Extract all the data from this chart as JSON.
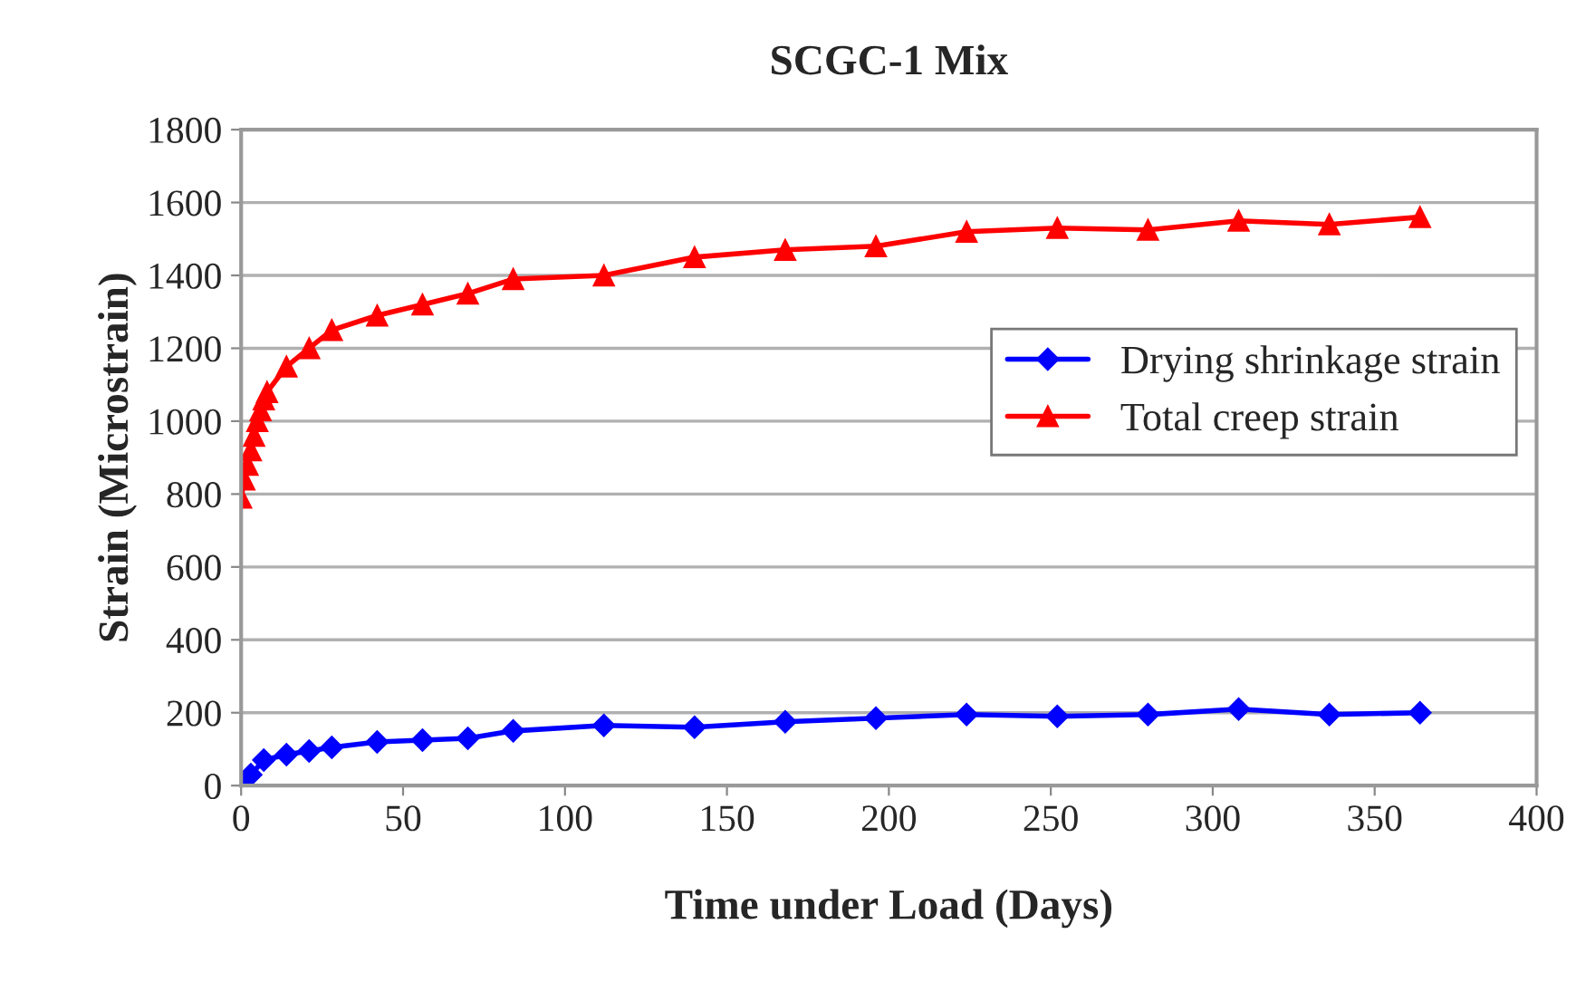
{
  "chart_data": {
    "type": "line",
    "title": "SCGC-1 Mix",
    "xlabel": "Time under Load (Days)",
    "ylabel": "Strain (Microstrain)",
    "series": [
      {
        "name": "Drying shrinkage strain",
        "color": "#0000ff",
        "marker": "diamond",
        "x": [
          0,
          3,
          7,
          14,
          21,
          28,
          42,
          56,
          70,
          84,
          112,
          140,
          168,
          196,
          224,
          252,
          280,
          308,
          336,
          364
        ],
        "values": [
          0,
          30,
          70,
          85,
          95,
          105,
          120,
          125,
          130,
          150,
          165,
          160,
          175,
          185,
          195,
          190,
          195,
          210,
          195,
          200
        ]
      },
      {
        "name": "Total creep strain",
        "color": "#ff0000",
        "marker": "triangle",
        "x": [
          0,
          1,
          2,
          3,
          4,
          5,
          6,
          7,
          8,
          14,
          21,
          28,
          42,
          56,
          70,
          84,
          112,
          140,
          168,
          196,
          224,
          252,
          280,
          308,
          336,
          364
        ],
        "values": [
          790,
          840,
          880,
          920,
          960,
          1000,
          1030,
          1060,
          1080,
          1150,
          1200,
          1250,
          1290,
          1320,
          1350,
          1390,
          1400,
          1450,
          1470,
          1480,
          1520,
          1530,
          1525,
          1550,
          1540,
          1560
        ]
      }
    ],
    "xlim": [
      0,
      400
    ],
    "xticks": [
      0,
      50,
      100,
      150,
      200,
      250,
      300,
      350,
      400
    ],
    "ylim": [
      0,
      1800
    ],
    "yticks": [
      0,
      200,
      400,
      600,
      800,
      1000,
      1200,
      1400,
      1600,
      1800
    ],
    "grid": "y",
    "legend": "center right"
  }
}
